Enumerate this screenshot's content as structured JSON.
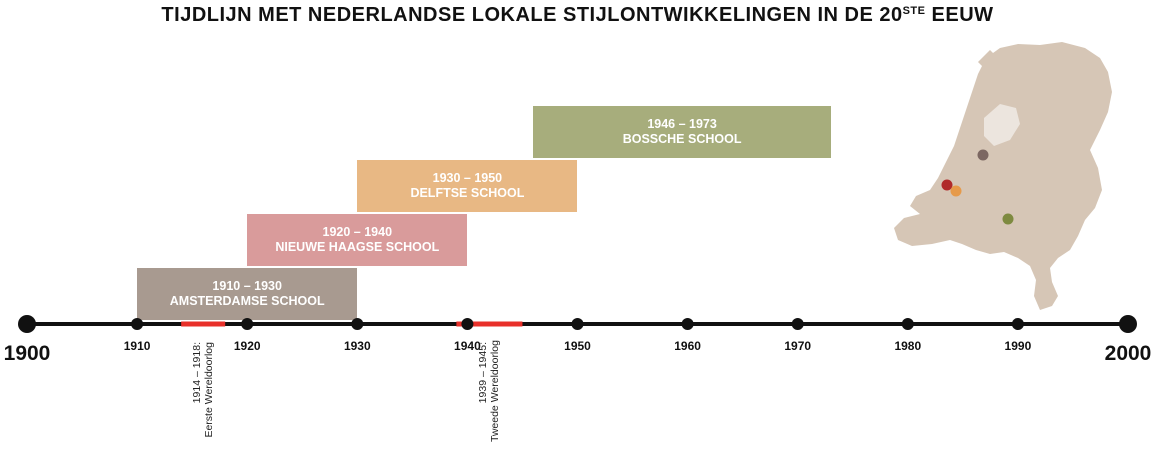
{
  "title": {
    "main": "TIJDLIJN MET NEDERLANDSE LOKALE STIJLONTWIKKELINGEN IN DE 20",
    "superscript": "STE",
    "end": " EEUW"
  },
  "axis": {
    "start": "1900",
    "end": "2000",
    "ticks": [
      "1910",
      "1920",
      "1930",
      "1940",
      "1950",
      "1960",
      "1970",
      "1980",
      "1990"
    ]
  },
  "periods": [
    {
      "years": "1910 – 1930",
      "name": "AMSTERDAMSE SCHOOL",
      "start": 1910,
      "end": 1930,
      "color": "#a89a90"
    },
    {
      "years": "1920 – 1940",
      "name": "NIEUWE HAAGSE SCHOOL",
      "start": 1920,
      "end": 1940,
      "color": "#d99b9b"
    },
    {
      "years": "1930 – 1950",
      "name": "DELFTSE SCHOOL",
      "start": 1930,
      "end": 1950,
      "color": "#e8b884"
    },
    {
      "years": "1946 – 1973",
      "name": "BOSSCHE SCHOOL",
      "start": 1946,
      "end": 1973,
      "color": "#a7ad7c"
    }
  ],
  "wars": [
    {
      "line1": "1914 – 1918:",
      "line2": "Eerste Wereldoorlog",
      "start": 1914,
      "end": 1918
    },
    {
      "line1": "1939 – 1945:",
      "line2": "Tweede Wereldoorlog",
      "start": 1939,
      "end": 1945
    }
  ],
  "colors": {
    "axis": "#111111",
    "war": "#e8302a",
    "map": "#d6c6b6",
    "dot_amsterdam": "#7c6762",
    "dot_denhaag": "#b02a2a",
    "dot_delft": "#e69a4a",
    "dot_denbosch": "#7e8a40"
  }
}
